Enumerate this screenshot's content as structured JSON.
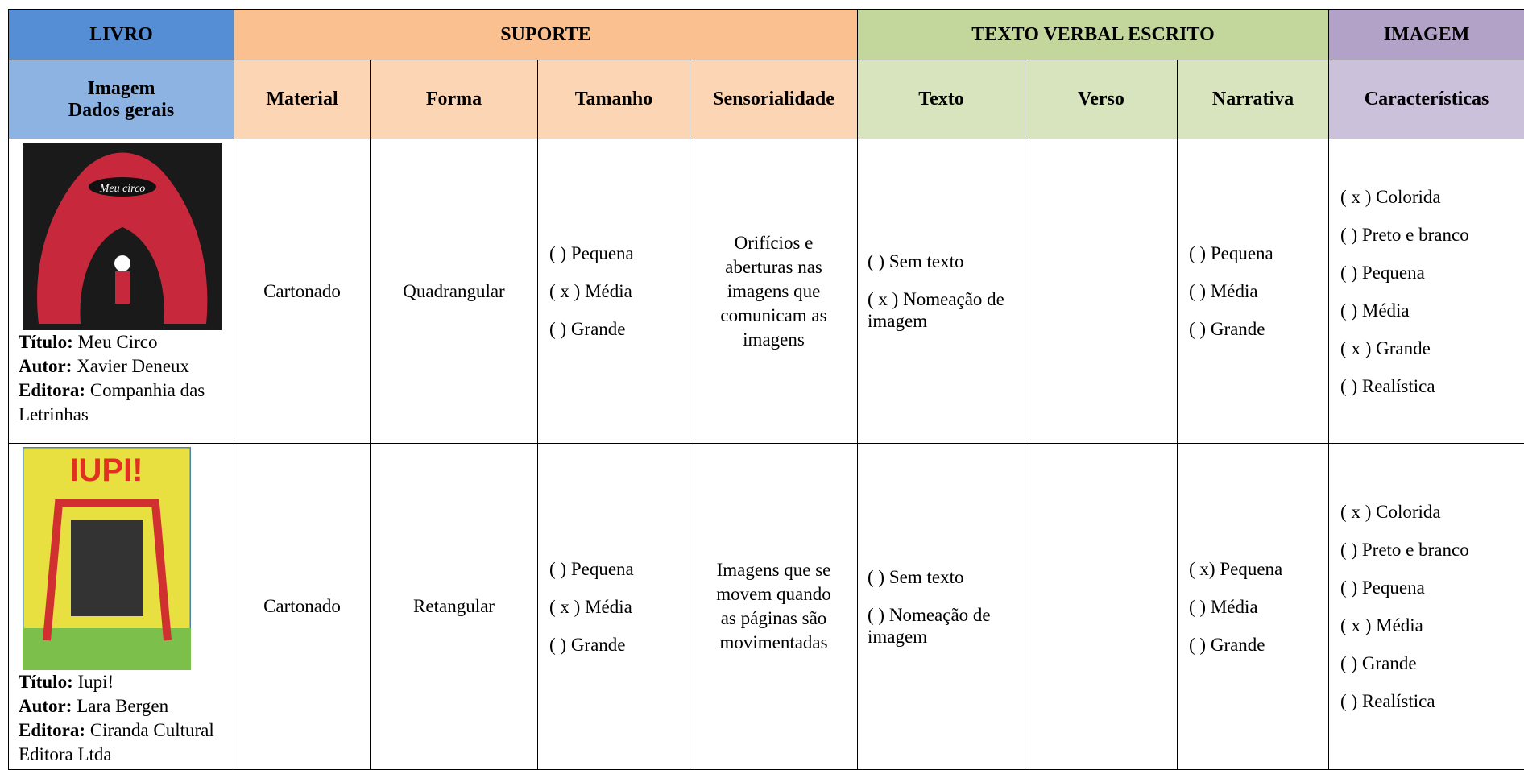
{
  "header": {
    "groups": [
      "LIVRO",
      "SUPORTE",
      "TEXTO VERBAL ESCRITO",
      "IMAGEM"
    ],
    "subheaders": [
      [
        "Imagem",
        "Dados gerais"
      ],
      "Material",
      "Forma",
      "Tamanho",
      "Sensorialidade",
      "Texto",
      "Verso",
      "Narrativa",
      "Características"
    ]
  },
  "rows": [
    {
      "book": {
        "cover_text": "Meu circo",
        "title_label": "Título:",
        "title": "Meu Circo",
        "author_label": "Autor:",
        "author": "Xavier Deneux",
        "publisher_label": "Editora:",
        "publisher": "Companhia das Letrinhas"
      },
      "material": "Cartonado",
      "forma": "Quadrangular",
      "tamanho": [
        "(  ) Pequena",
        "( x ) Média",
        "(  ) Grande"
      ],
      "sensorialidade": "Orifícios e aberturas nas imagens que comunicam as imagens",
      "texto": [
        "(  ) Sem texto",
        "( x ) Nomeação de imagem"
      ],
      "narrativa": [
        "(  ) Pequena",
        "(  ) Média",
        "(  ) Grande"
      ],
      "caracteristicas": [
        "( x ) Colorida",
        "(  ) Preto e branco",
        "(  ) Pequena",
        "(  ) Média",
        "( x ) Grande",
        "(  ) Realística"
      ]
    },
    {
      "book": {
        "cover_text": "IUPI!",
        "title_label": "Título:",
        "title": "Iupi!",
        "author_label": "Autor:",
        "author": "Lara Bergen",
        "publisher_label": "Editora:",
        "publisher": "Ciranda Cultural Editora Ltda"
      },
      "material": "Cartonado",
      "forma": "Retangular",
      "tamanho": [
        "(  ) Pequena",
        "( x ) Média",
        "(  ) Grande"
      ],
      "sensorialidade": "Imagens que se movem quando as páginas são movimentadas",
      "texto": [
        "(  ) Sem texto",
        "(  ) Nomeação de imagem"
      ],
      "narrativa": [
        "( x) Pequena",
        "(  ) Média",
        "(  ) Grande"
      ],
      "caracteristicas": [
        "( x ) Colorida",
        "(  ) Preto e branco",
        "(  ) Pequena",
        "( x ) Média",
        "(  ) Grande",
        "(  ) Realística"
      ]
    }
  ]
}
